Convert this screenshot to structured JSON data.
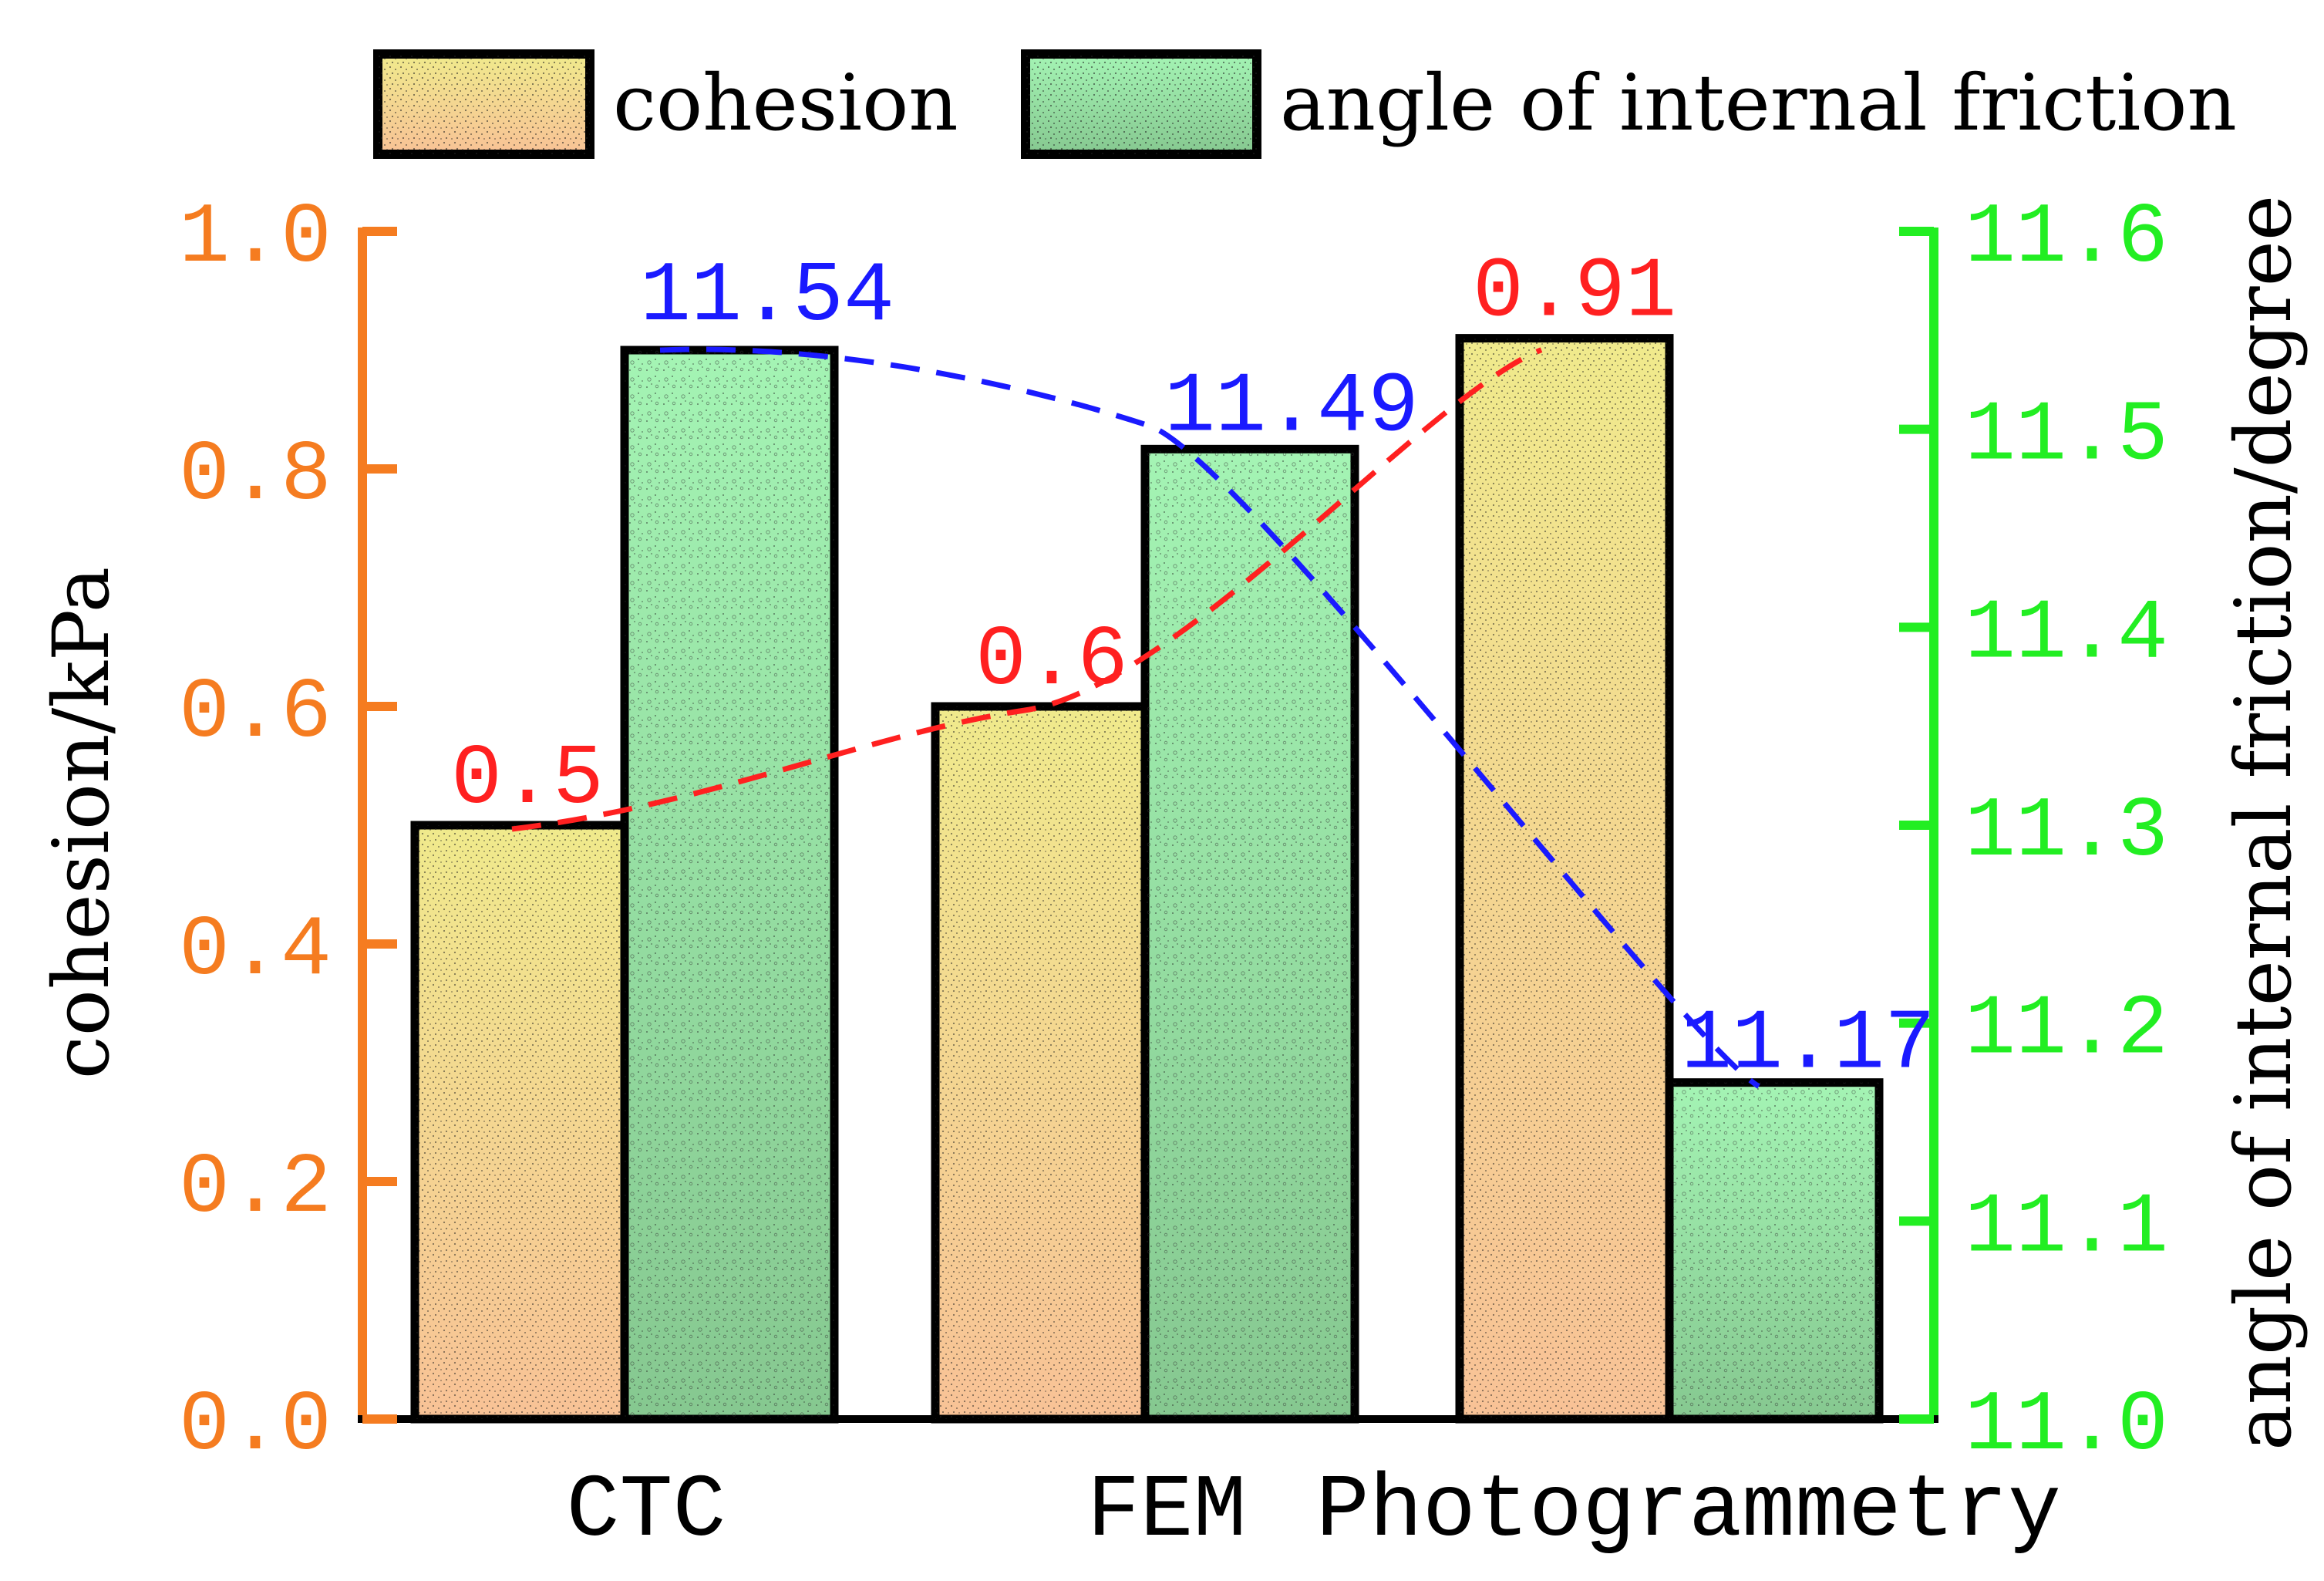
{
  "chart_data": {
    "type": "bar",
    "categories": [
      "CTC",
      "FEM",
      "Photogrammetry"
    ],
    "series": [
      {
        "name": "cohesion",
        "axis": "left",
        "values": [
          0.5,
          0.6,
          0.91
        ],
        "value_labels": [
          "0.5",
          "0.6",
          "0.91"
        ],
        "fill_top": "#f0ea8c",
        "fill_bottom": "#f8c296",
        "label_color": "#ff2020",
        "trend_color": "#ff2020"
      },
      {
        "name": "angle of internal friction",
        "axis": "right",
        "values": [
          11.54,
          11.49,
          11.17
        ],
        "value_labels": [
          "11.54",
          "11.49",
          "11.17"
        ],
        "fill_top": "#a4f4b4",
        "fill_bottom": "#86c890",
        "label_color": "#1a1aff",
        "trend_color": "#1a1aff"
      }
    ],
    "left_axis": {
      "label": "cohesion/kPa",
      "ylim": [
        0.0,
        1.0
      ],
      "ticks": [
        "0.0",
        "0.2",
        "0.4",
        "0.6",
        "0.8",
        "1.0"
      ],
      "tick_values": [
        0.0,
        0.2,
        0.4,
        0.6,
        0.8,
        1.0
      ],
      "color": "#f57c20"
    },
    "right_axis": {
      "label": "angle of internal friction/degree",
      "ylim": [
        11.0,
        11.6
      ],
      "ticks": [
        "11.0",
        "11.1",
        "11.2",
        "11.3",
        "11.4",
        "11.5",
        "11.6"
      ],
      "tick_values": [
        11.0,
        11.1,
        11.2,
        11.3,
        11.4,
        11.5,
        11.6
      ],
      "color": "#22ee22"
    },
    "legend": {
      "position": "top",
      "entries": [
        "cohesion",
        "angle of internal friction"
      ]
    }
  }
}
